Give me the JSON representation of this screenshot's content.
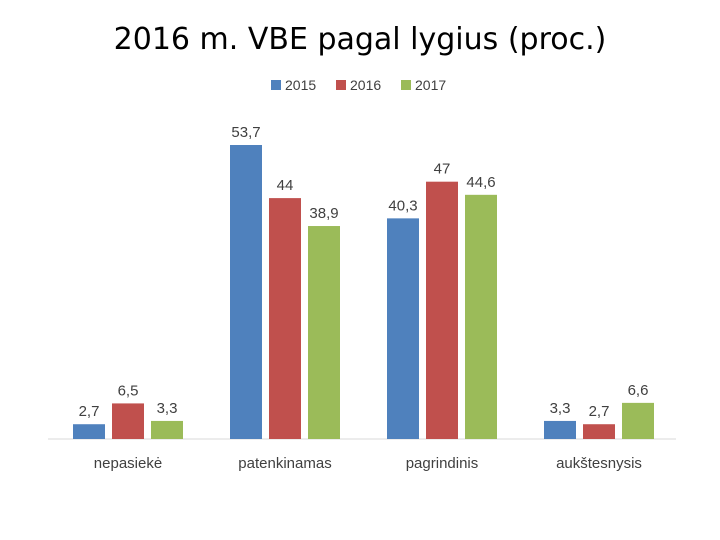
{
  "chart_data": {
    "type": "bar",
    "title": "2016 m. VBE pagal lygius (proc.)",
    "categories": [
      "nepasiekė",
      "patenkinamas",
      "pagrindinis",
      "aukštesnysis"
    ],
    "series": [
      {
        "name": "2015",
        "color": "#4f81bd",
        "values": [
          2.7,
          53.7,
          40.3,
          3.3
        ],
        "labels": [
          "2,7",
          "53,7",
          "40,3",
          "3,3"
        ]
      },
      {
        "name": "2016",
        "color": "#c0504d",
        "values": [
          6.5,
          44,
          47,
          2.7
        ],
        "labels": [
          "6,5",
          "44",
          "47",
          "2,7"
        ]
      },
      {
        "name": "2017",
        "color": "#9bbb59",
        "values": [
          3.3,
          38.9,
          44.6,
          6.6
        ],
        "labels": [
          "3,3",
          "38,9",
          "44,6",
          "6,6"
        ]
      }
    ],
    "xlabel": "",
    "ylabel": "",
    "ylim": [
      0,
      53.7
    ],
    "grid": false,
    "legend": "top-center"
  }
}
